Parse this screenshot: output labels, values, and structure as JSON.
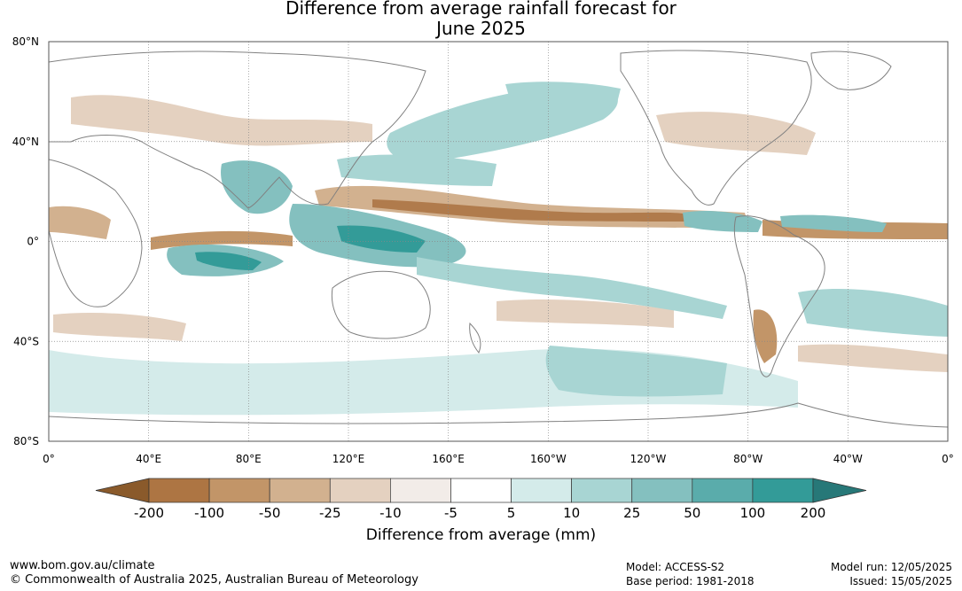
{
  "title": {
    "line1": "Difference from average rainfall forecast for",
    "line2": "June 2025"
  },
  "map": {
    "projection": "equirectangular",
    "lon_range": [
      0,
      360
    ],
    "lat_range": [
      -80,
      80
    ],
    "lat_ticks": [
      "80°N",
      "40°N",
      "0°",
      "40°S",
      "80°S"
    ],
    "lon_ticks": [
      "0°",
      "40°E",
      "80°E",
      "120°E",
      "160°E",
      "160°W",
      "120°W",
      "80°W",
      "40°W",
      "0°"
    ],
    "gridlines": true,
    "land_outline_color": "#808080"
  },
  "colorbar": {
    "label": "Difference from average (mm)",
    "tick_labels": [
      "-200",
      "-100",
      "-50",
      "-25",
      "-10",
      "-5",
      "5",
      "10",
      "25",
      "50",
      "100",
      "200"
    ],
    "colors": [
      "#8a5a2b",
      "#ad7543",
      "#c29568",
      "#d2b18f",
      "#e4d1c0",
      "#f2ece8",
      "#ffffff",
      "#d4ebea",
      "#a8d5d3",
      "#84c0bf",
      "#5aacab",
      "#339b98",
      "#277878"
    ]
  },
  "footer": {
    "website": "www.bom.gov.au/climate",
    "copyright": "© Commonwealth of Australia 2025, Australian Bureau of Meteorology",
    "model": "Model: ACCESS-S2",
    "base_period": "Base period: 1981-2018",
    "model_run": "Model run: 12/05/2025",
    "issued": "Issued: 15/05/2025"
  }
}
